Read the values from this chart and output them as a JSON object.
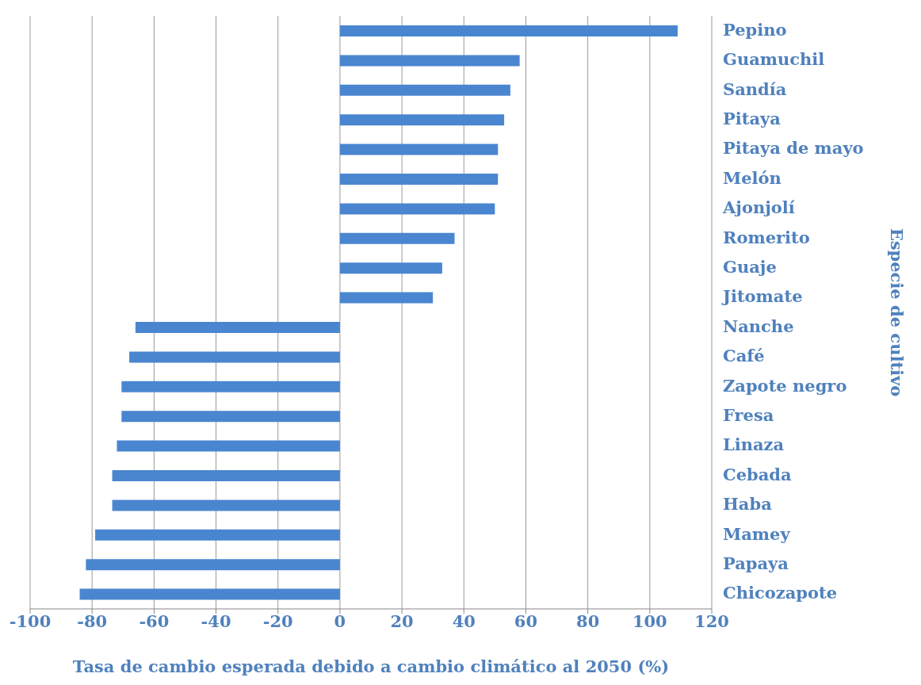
{
  "chart_data": {
    "type": "bar",
    "orientation": "horizontal",
    "xlabel": "Tasa de cambio esperada debido a cambio climático al 2050 (%)",
    "ylabel": "Especie de cultivo",
    "categories": [
      "Pepino",
      "Guamuchil",
      "Sandía",
      "Pitaya",
      "Pitaya de mayo",
      "Melón",
      "Ajonjolí",
      "Romerito",
      "Guaje",
      "Jitomate",
      "Nanche",
      "Café",
      "Zapote negro",
      "Fresa",
      "Linaza",
      "Cebada",
      "Haba",
      "Mamey",
      "Papaya",
      "Chicozapote"
    ],
    "values": [
      109,
      58,
      55,
      53,
      51,
      51,
      50,
      37,
      33,
      30,
      -66,
      -68,
      -70.5,
      -70.5,
      -72,
      -73.5,
      -73.5,
      -79,
      -82,
      -84
    ],
    "color": "#4a86d0",
    "xlim": [
      -100,
      120
    ],
    "xticks": [
      -100,
      -80,
      -60,
      -40,
      -20,
      0,
      20,
      40,
      60,
      80,
      100,
      120
    ],
    "grid": "x",
    "legend": false
  }
}
